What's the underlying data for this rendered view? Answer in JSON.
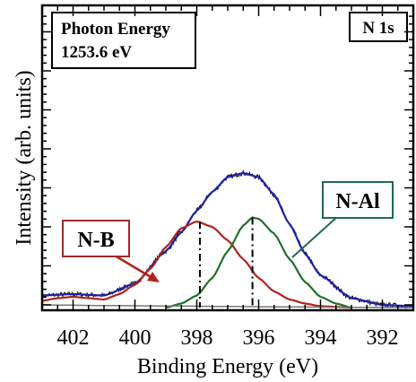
{
  "chart_data": {
    "type": "line",
    "xlabel": "Binding Energy (eV)",
    "ylabel": "Intensity (arb. units)",
    "xlim": [
      403,
      391
    ],
    "x_reversed": true,
    "y_ticks_labeled": false,
    "xticks": [
      402,
      400,
      398,
      396,
      394,
      392
    ],
    "annotations": {
      "photon_line1": "Photon Energy",
      "photon_line2": "1253.6 eV",
      "core_level": "N 1s",
      "peak_nb": "N-B",
      "peak_nal": "N-Al"
    },
    "peak_markers": [
      397.9,
      396.2
    ],
    "series": [
      {
        "role": "measured",
        "color": "#000000",
        "noisy": true,
        "x": [
          403,
          402,
          401,
          400,
          399,
          398.5,
          398,
          397.5,
          397,
          396.5,
          396,
          395.5,
          395,
          394.5,
          394,
          393,
          392,
          391
        ],
        "y": [
          0.09,
          0.1,
          0.09,
          0.18,
          0.42,
          0.56,
          0.72,
          0.86,
          0.97,
          1.0,
          0.97,
          0.84,
          0.62,
          0.4,
          0.24,
          0.07,
          0.02,
          0.01
        ]
      },
      {
        "role": "envelope fit",
        "color": "#1e22a8",
        "x": [
          403,
          402,
          401,
          400,
          399,
          398.5,
          398,
          397.5,
          397,
          396.5,
          396,
          395.5,
          395,
          394.5,
          394,
          393,
          392,
          391
        ],
        "y": [
          0.09,
          0.1,
          0.09,
          0.18,
          0.42,
          0.56,
          0.72,
          0.86,
          0.97,
          1.0,
          0.97,
          0.84,
          0.62,
          0.4,
          0.24,
          0.07,
          0.02,
          0.01
        ]
      },
      {
        "role": "N-B component",
        "color": "#b1221c",
        "x": [
          403,
          402.5,
          402,
          401.5,
          401,
          400.5,
          400,
          399.5,
          399,
          398.5,
          398,
          397.5,
          397,
          396.5,
          396,
          395.5,
          395,
          394.5,
          394,
          393
        ],
        "y": [
          0.05,
          0.07,
          0.08,
          0.07,
          0.06,
          0.1,
          0.17,
          0.29,
          0.45,
          0.59,
          0.64,
          0.6,
          0.5,
          0.36,
          0.22,
          0.12,
          0.06,
          0.03,
          0.01,
          0.0
        ]
      },
      {
        "role": "N-Al component",
        "color": "#1f6f2a",
        "x": [
          399,
          398.5,
          398,
          397.5,
          397,
          396.5,
          396.2,
          396,
          395.5,
          395,
          394.5,
          394,
          393.5,
          393
        ],
        "y": [
          0.0,
          0.03,
          0.09,
          0.22,
          0.42,
          0.61,
          0.67,
          0.66,
          0.55,
          0.36,
          0.19,
          0.08,
          0.03,
          0.0
        ]
      },
      {
        "role": "background",
        "color": "#777777",
        "x": [
          403,
          401,
          399,
          397,
          395,
          393,
          391
        ],
        "y": [
          0.02,
          0.015,
          0.012,
          0.008,
          0.005,
          0.002,
          0.0
        ]
      }
    ],
    "colors": {
      "nb_box": "#9e2a2a",
      "nal_box": "#1f6b4a",
      "nb_arrow": "#b1221c",
      "nal_arrow": "#1f6b4a"
    }
  }
}
